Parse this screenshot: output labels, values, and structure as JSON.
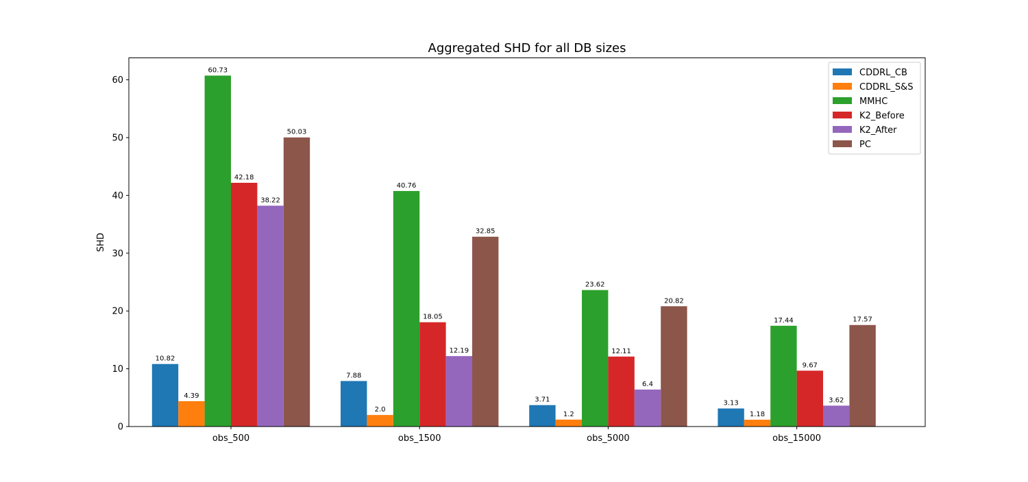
{
  "chart_data": {
    "type": "bar",
    "title": "Aggregated SHD for all DB sizes",
    "xlabel": "",
    "ylabel": "SHD",
    "ylim": [
      0,
      63.8
    ],
    "yticks": [
      0,
      10,
      20,
      30,
      40,
      50,
      60
    ],
    "categories": [
      "obs_500",
      "obs_1500",
      "obs_5000",
      "obs_15000"
    ],
    "legend_position": "top-right",
    "grid": false,
    "series": [
      {
        "name": "CDDRL_CB",
        "color": "#1f77b4",
        "values": [
          10.82,
          7.88,
          3.71,
          3.13
        ],
        "labels": [
          "10.82",
          "7.88",
          "3.71",
          "3.13"
        ]
      },
      {
        "name": "CDDRL_S&S",
        "color": "#ff7f0e",
        "values": [
          4.39,
          2.0,
          1.2,
          1.18
        ],
        "labels": [
          "4.39",
          "2.0",
          "1.2",
          "1.18"
        ]
      },
      {
        "name": "MMHC",
        "color": "#2ca02c",
        "values": [
          60.73,
          40.76,
          23.62,
          17.44
        ],
        "labels": [
          "60.73",
          "40.76",
          "23.62",
          "17.44"
        ]
      },
      {
        "name": "K2_Before",
        "color": "#d62728",
        "values": [
          42.18,
          18.05,
          12.11,
          9.67
        ],
        "labels": [
          "42.18",
          "18.05",
          "12.11",
          "9.67"
        ]
      },
      {
        "name": "K2_After",
        "color": "#9467bd",
        "values": [
          38.22,
          12.19,
          6.4,
          3.62
        ],
        "labels": [
          "38.22",
          "12.19",
          "6.4",
          "3.62"
        ]
      },
      {
        "name": "PC",
        "color": "#8c564b",
        "values": [
          50.03,
          32.85,
          20.82,
          17.57
        ],
        "labels": [
          "50.03",
          "32.85",
          "20.82",
          "17.57"
        ]
      }
    ]
  }
}
